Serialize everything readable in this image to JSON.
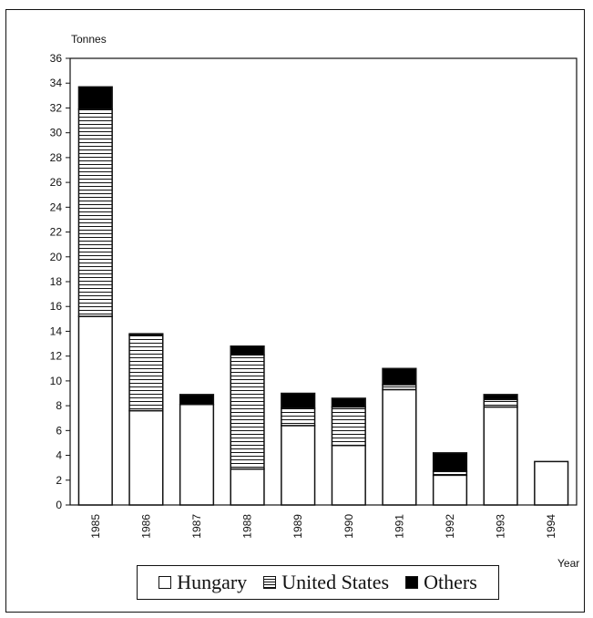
{
  "chart_data": {
    "type": "bar",
    "stacked": true,
    "ylabel": "Tonnes",
    "xlabel": "Year",
    "ylim": [
      0,
      36
    ],
    "ytick_step": 2,
    "categories": [
      "1985",
      "1986",
      "1987",
      "1988",
      "1989",
      "1990",
      "1991",
      "1992",
      "1993",
      "1994"
    ],
    "series": [
      {
        "name": "Hungary",
        "pattern": "white",
        "color": "#ffffff",
        "values": [
          15.2,
          7.6,
          8.1,
          2.9,
          6.4,
          4.8,
          9.3,
          2.4,
          7.9,
          3.5
        ]
      },
      {
        "name": "United States",
        "pattern": "horizontal-lines",
        "color": "#ffffff",
        "values": [
          16.7,
          6.1,
          0.0,
          9.2,
          1.4,
          3.1,
          0.4,
          0.3,
          0.6,
          0.0
        ]
      },
      {
        "name": "Others",
        "pattern": "solid-black",
        "color": "#000000",
        "values": [
          1.8,
          0.1,
          0.8,
          0.7,
          1.2,
          0.7,
          1.3,
          1.5,
          0.4,
          0.0
        ]
      }
    ],
    "legend": {
      "placement": "bottom-center",
      "labels": [
        "Hungary",
        "United States",
        "Others"
      ]
    }
  }
}
